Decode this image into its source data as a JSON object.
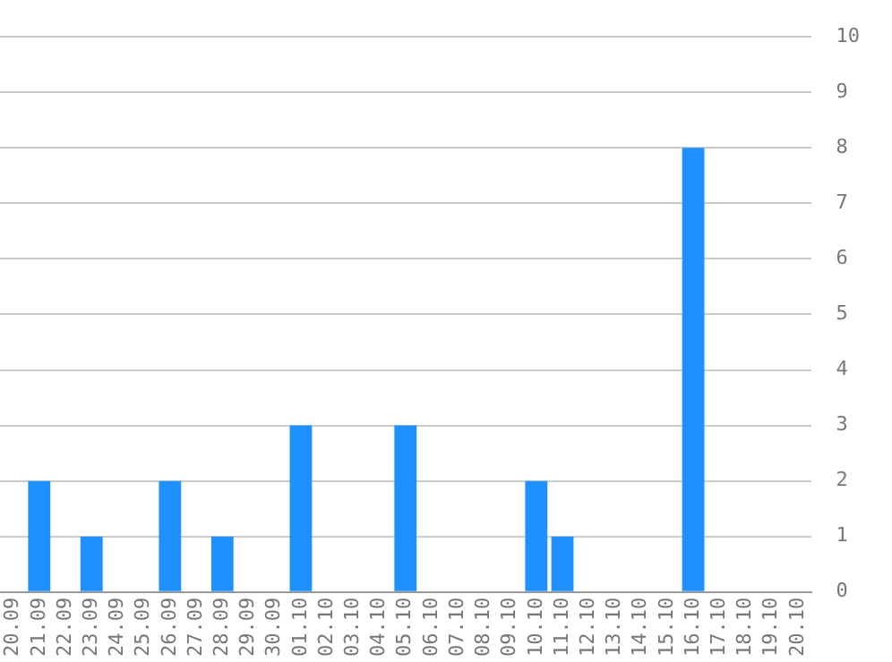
{
  "chart_data": {
    "type": "bar",
    "categories": [
      "20.09",
      "21.09",
      "22.09",
      "23.09",
      "24.09",
      "25.09",
      "26.09",
      "27.09",
      "28.09",
      "29.09",
      "30.09",
      "01.10",
      "02.10",
      "03.10",
      "04.10",
      "05.10",
      "06.10",
      "07.10",
      "08.10",
      "09.10",
      "10.10",
      "11.10",
      "12.10",
      "13.10",
      "14.10",
      "15.10",
      "16.10",
      "17.10",
      "18.10",
      "19.10",
      "20.10"
    ],
    "values": [
      0,
      2,
      0,
      1,
      0,
      0,
      2,
      0,
      1,
      0,
      0,
      3,
      0,
      0,
      0,
      3,
      0,
      0,
      0,
      0,
      2,
      1,
      0,
      0,
      0,
      0,
      8,
      0,
      0,
      0,
      0
    ],
    "color": "#1e90ff",
    "ylim": [
      0,
      10
    ],
    "yticks": [
      0,
      1,
      2,
      3,
      4,
      5,
      6,
      7,
      8,
      9,
      10
    ],
    "grid": "y",
    "legend": false
  }
}
